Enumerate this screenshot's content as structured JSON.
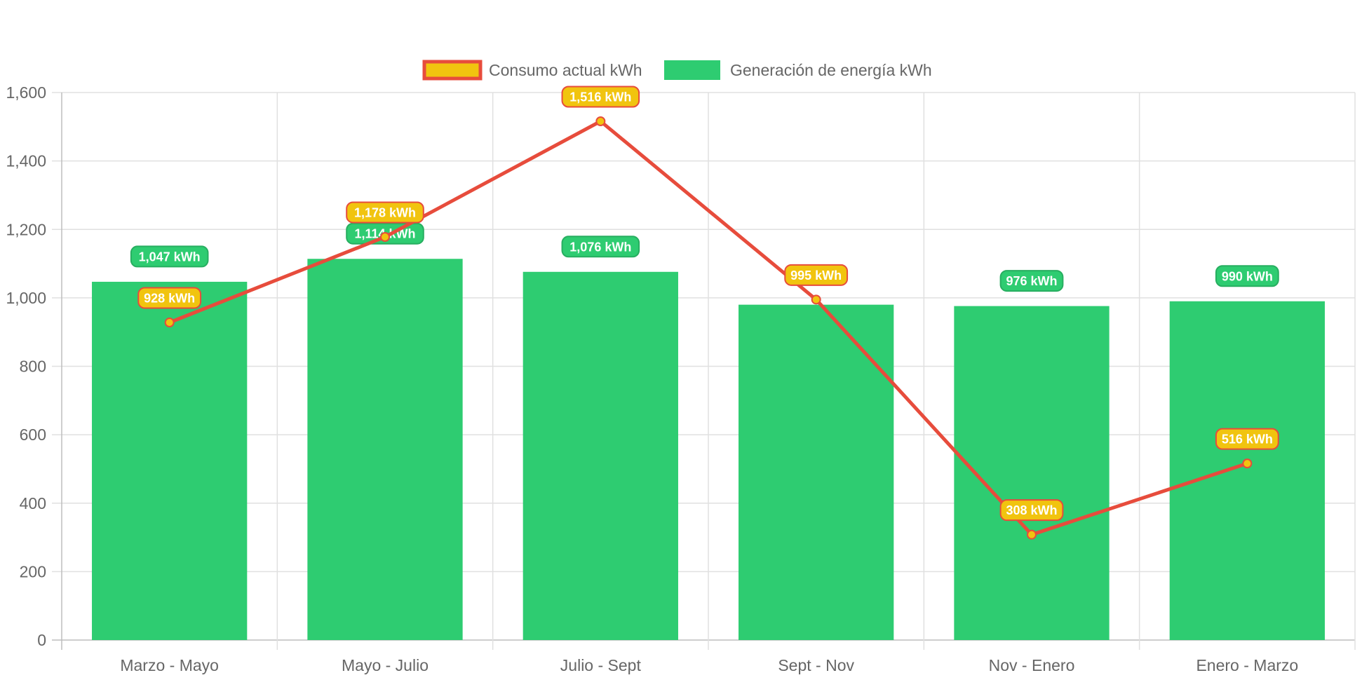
{
  "chart_data": {
    "type": "bar",
    "categories": [
      "Marzo - Mayo",
      "Mayo - Julio",
      "Julio - Sept",
      "Sept - Nov",
      "Nov - Enero",
      "Enero - Marzo"
    ],
    "ylim": [
      0,
      1600
    ],
    "yticks": [
      0,
      200,
      400,
      600,
      800,
      1000,
      1200,
      1400,
      1600
    ],
    "ytick_labels": [
      "0",
      "200",
      "400",
      "600",
      "800",
      "1,000",
      "1,200",
      "1,400",
      "1,600"
    ],
    "grid": true,
    "legend_position": "top",
    "series": [
      {
        "name": "Consumo actual kWh",
        "type": "line",
        "color": "#e74c3c",
        "point_color": "#f1c40f",
        "values": [
          928,
          1178,
          1516,
          995,
          308,
          516
        ],
        "data_labels": [
          "928 kWh",
          "1,178 kWh",
          "1,516 kWh",
          "995 kWh",
          "308 kWh",
          "516 kWh"
        ]
      },
      {
        "name": "Generación de energía kWh",
        "type": "bar",
        "color": "#2ecc71",
        "label_border": "#27ae60",
        "values": [
          1047,
          1114,
          1076,
          980,
          976,
          990
        ],
        "data_labels": [
          "1,047 kWh",
          "1,114 kWh",
          "1,076 kWh",
          "",
          "976 kWh",
          "990 kWh"
        ]
      }
    ]
  }
}
